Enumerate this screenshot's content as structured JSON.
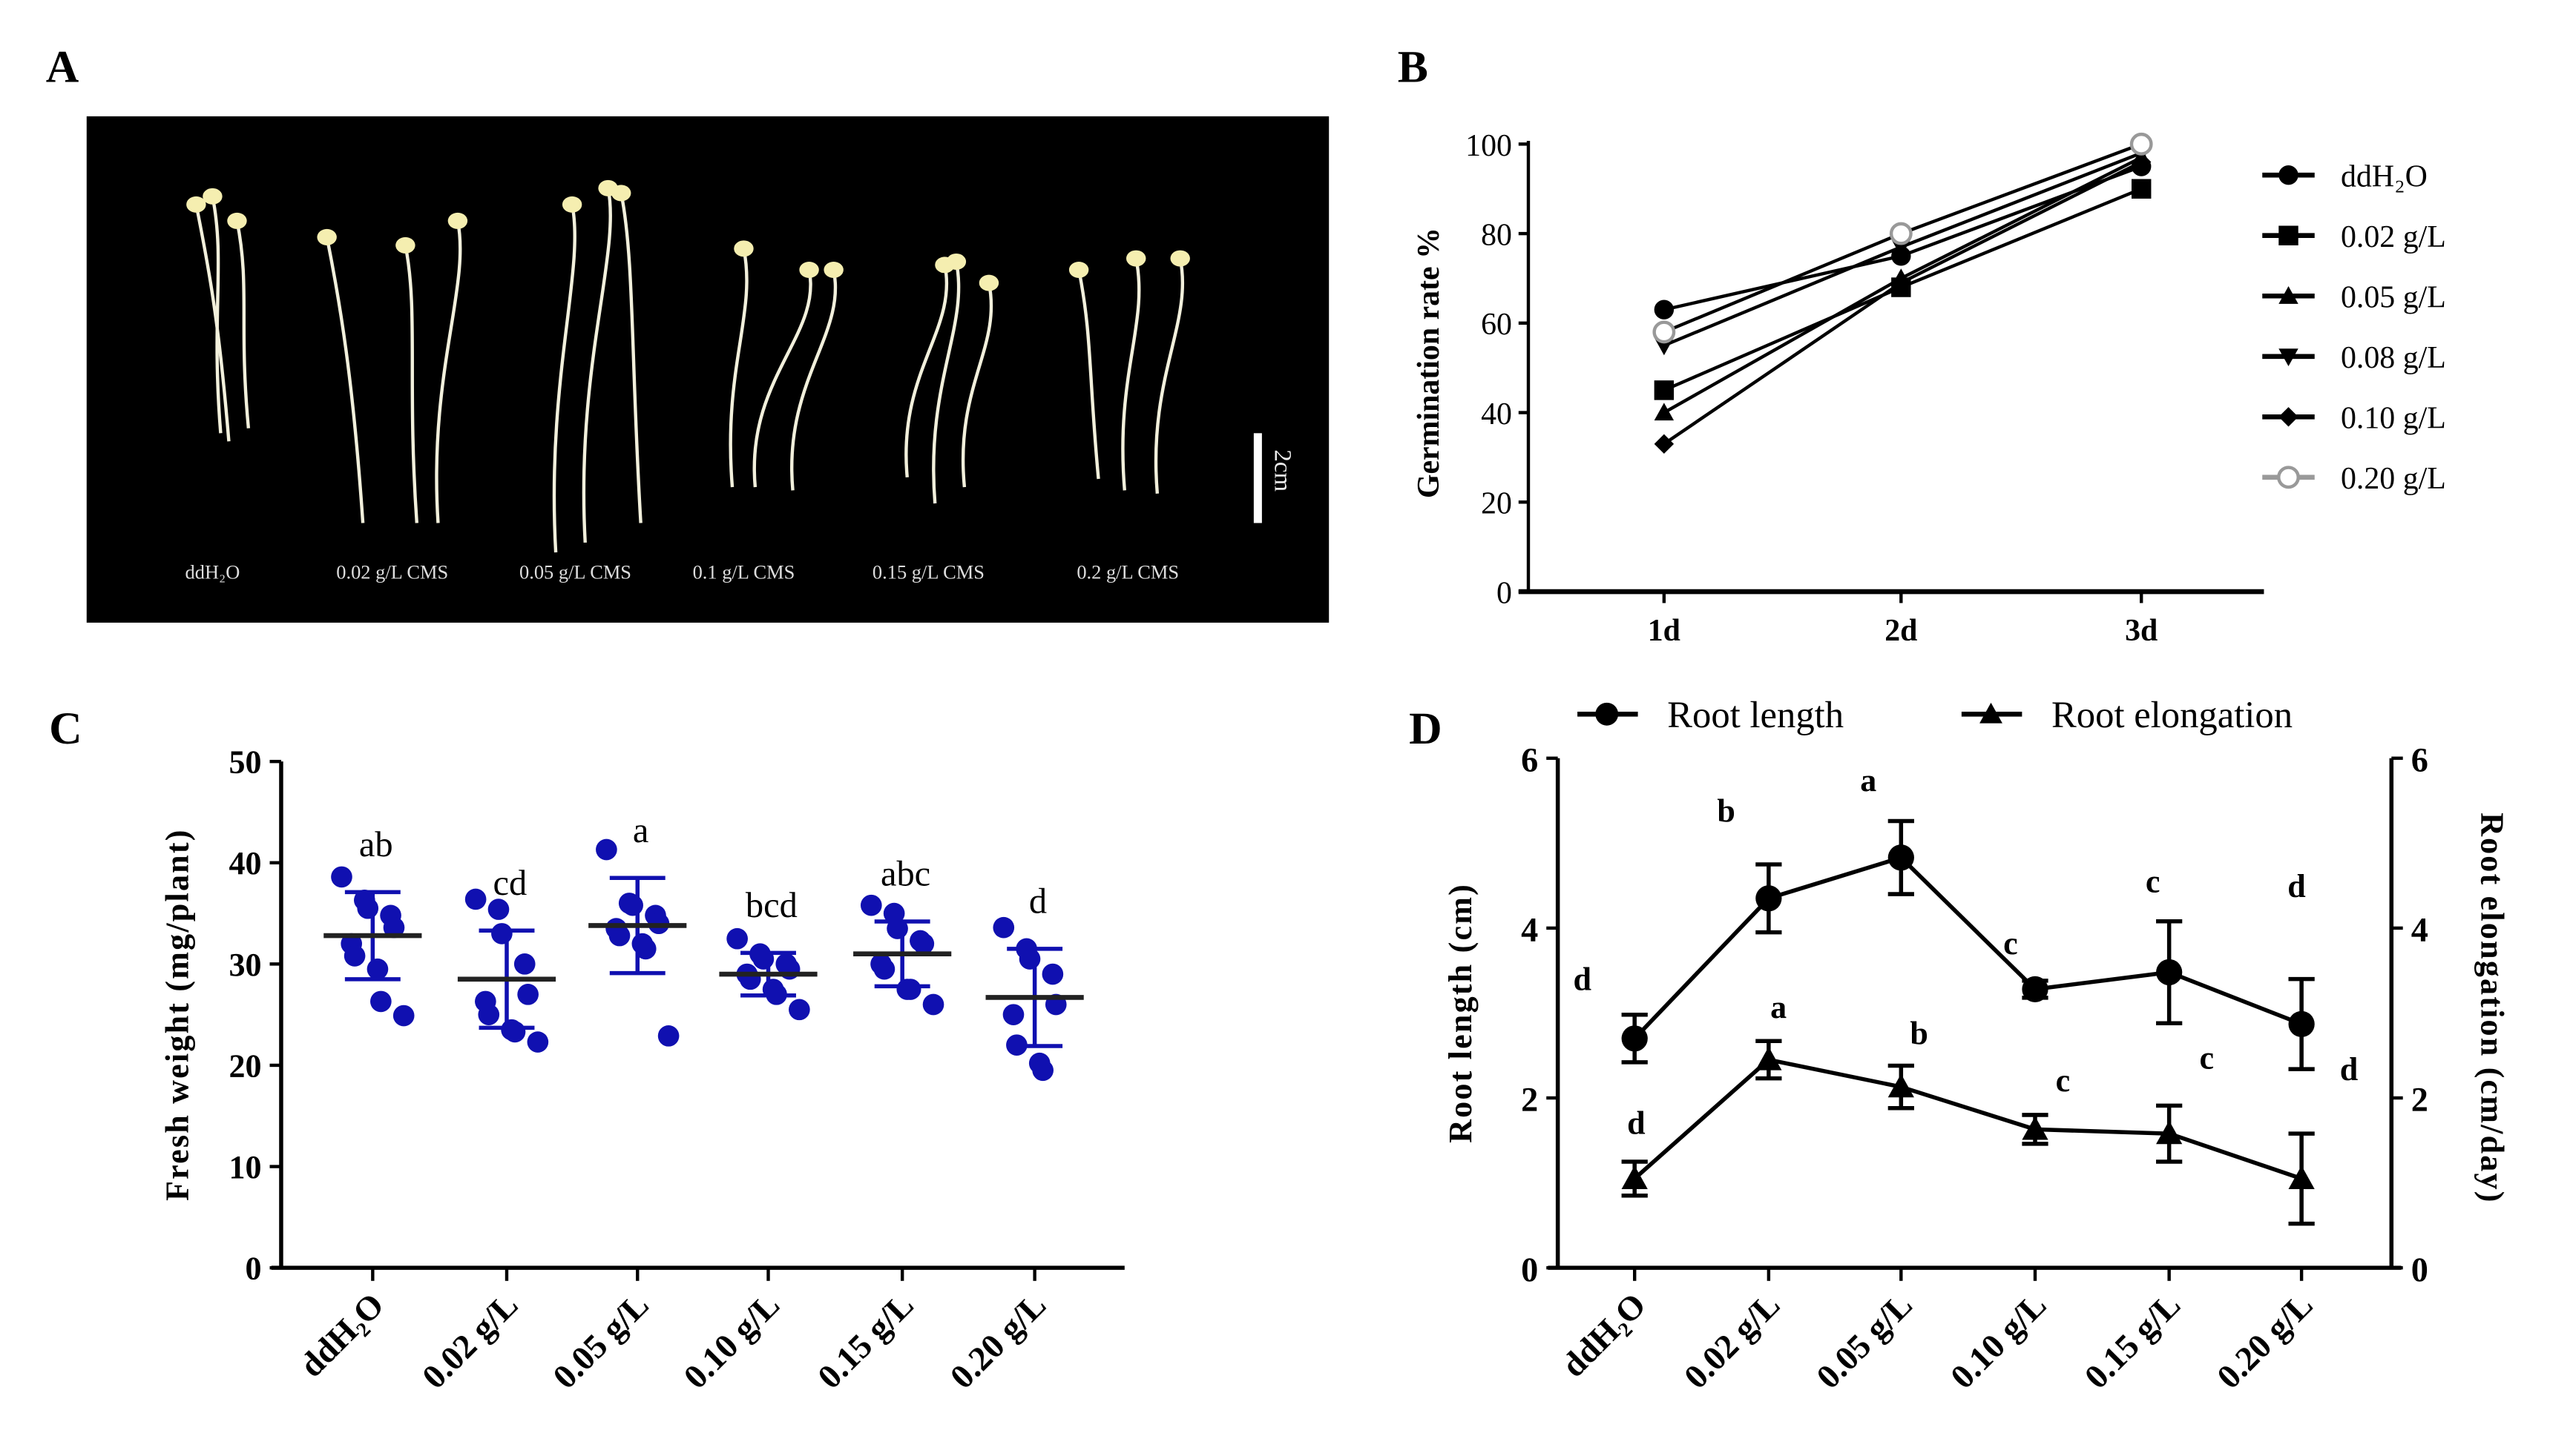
{
  "panel_labels": {
    "A": "A",
    "B": "B",
    "C": "C",
    "D": "D"
  },
  "panelA": {
    "groups": [
      "ddH₂O",
      "0.02 g/L CMS",
      "0.05 g/L CMS",
      "0.1 g/L CMS",
      "0.15 g/L CMS",
      "0.2 g/L CMS"
    ],
    "scale_bar": "2cm",
    "background": "#000000"
  },
  "chart_data": [
    {
      "type": "line",
      "panel": "B",
      "x": [
        "1d",
        "2d",
        "3d"
      ],
      "ylabel": "Germination rate %",
      "ylim": [
        0,
        100
      ],
      "yticks": [
        "0",
        "20",
        "40",
        "60",
        "80",
        "100"
      ],
      "legend_placement": "right",
      "series": [
        {
          "name": "ddH₂O",
          "marker": "circle",
          "values": [
            63,
            75,
            95
          ]
        },
        {
          "name": "0.02 g/L",
          "marker": "square",
          "values": [
            45,
            68,
            90
          ]
        },
        {
          "name": "0.05 g/L",
          "marker": "triangle-up",
          "values": [
            40,
            70,
            97
          ]
        },
        {
          "name": "0.08 g/L",
          "marker": "triangle-down",
          "values": [
            55,
            77,
            98
          ]
        },
        {
          "name": "0.10 g/L",
          "marker": "diamond",
          "values": [
            33,
            69,
            96
          ]
        },
        {
          "name": "0.20 g/L",
          "marker": "open-circle",
          "values": [
            58,
            80,
            100
          ]
        }
      ]
    },
    {
      "type": "scatter",
      "panel": "C",
      "categories": [
        "ddH₂O",
        "0.02 g/L",
        "0.05 g/L",
        "0.10 g/L",
        "0.15 g/L",
        "0.20 g/L"
      ],
      "ylabel": "Fresh weight (mg/plant)",
      "ylim": [
        0,
        50
      ],
      "yticks": [
        "0",
        "10",
        "20",
        "30",
        "40",
        "50"
      ],
      "point_color": "#1010B0",
      "groups": [
        {
          "points": [
            38.6,
            36.3,
            35.5,
            34.8,
            33.6,
            32.0,
            30.8,
            29.5,
            26.3,
            24.9
          ],
          "mean": 32.8,
          "sd": 4.3,
          "letter": "ab"
        },
        {
          "points": [
            36.4,
            35.4,
            33.0,
            30.0,
            27.0,
            26.3,
            25.0,
            23.5,
            23.3,
            22.3
          ],
          "mean": 28.5,
          "sd": 4.8,
          "letter": "cd"
        },
        {
          "points": [
            41.3,
            36.0,
            35.8,
            34.8,
            34.0,
            33.5,
            32.8,
            32.0,
            31.5,
            22.9
          ],
          "mean": 33.8,
          "sd": 4.7,
          "letter": "a"
        },
        {
          "points": [
            32.5,
            31.0,
            30.5,
            30.0,
            29.5,
            29.0,
            28.5,
            27.5,
            27.0,
            25.5
          ],
          "mean": 29.0,
          "sd": 2.1,
          "letter": "bcd"
        },
        {
          "points": [
            35.8,
            35.0,
            33.5,
            32.3,
            32.0,
            30.0,
            29.5,
            27.5,
            27.5,
            26.0
          ],
          "mean": 31.0,
          "sd": 3.2,
          "letter": "abc"
        },
        {
          "points": [
            33.6,
            31.5,
            30.5,
            29.0,
            26.0,
            25.0,
            22.0,
            20.2,
            19.5
          ],
          "mean": 26.7,
          "sd": 4.8,
          "letter": "d"
        }
      ]
    },
    {
      "type": "line",
      "panel": "D",
      "categories": [
        "ddH₂O",
        "0.02 g/L",
        "0.05 g/L",
        "0.10 g/L",
        "0.15 g/L",
        "0.20 g/L"
      ],
      "ylabel": "Root length (cm)",
      "y2label": "Root elongation (cm/day)",
      "ylim": [
        0,
        6
      ],
      "y2lim": [
        0,
        6
      ],
      "yticks": [
        "0",
        "2",
        "4",
        "6"
      ],
      "legend_placement": "top",
      "series": [
        {
          "name": "Root length",
          "marker": "circle",
          "axis": "left",
          "values": [
            2.7,
            4.35,
            4.83,
            3.28,
            3.48,
            2.87
          ],
          "errors": [
            0.28,
            0.4,
            0.43,
            0.1,
            0.6,
            0.53
          ],
          "letters": [
            "d",
            "b",
            "a",
            "c",
            "c",
            "d"
          ]
        },
        {
          "name": "Root elongation",
          "marker": "triangle-up",
          "axis": "right",
          "values": [
            1.05,
            2.45,
            2.13,
            1.63,
            1.58,
            1.05
          ],
          "errors": [
            0.2,
            0.22,
            0.25,
            0.17,
            0.33,
            0.53
          ],
          "letters": [
            "d",
            "a",
            "b",
            "c",
            "c",
            "d"
          ]
        }
      ]
    }
  ]
}
